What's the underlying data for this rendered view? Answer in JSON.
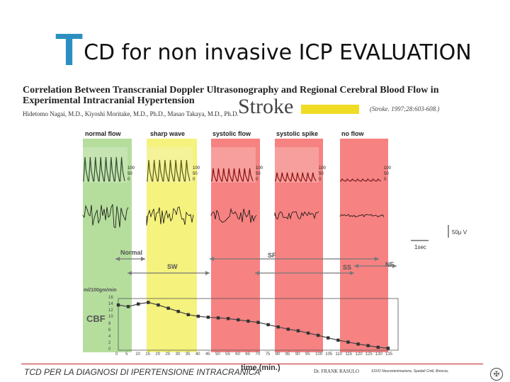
{
  "slide": {
    "title_initial": "T",
    "title_rest": "CD for non invasive ICP EVALUATION"
  },
  "paper": {
    "title": "Correlation Between Transcranial Doppler Ultrasonography and Regional Cerebral Blood Flow in Experimental Intracranial Hypertension",
    "authors": "Hidetomo Nagai, M.D., Kiyoshi Moritake, M.D., Ph.D., Masao Takaya, M.D., Ph.D.",
    "journal": "Stroke",
    "citation": "(Stroke. 1997;28:603-608.)"
  },
  "figure": {
    "panels": [
      "normal flow",
      "sharp wave",
      "systolic flow",
      "systolic spike",
      "no flow"
    ],
    "panel_colors": [
      "#a8d88c",
      "#f3f066",
      "#f56c6c",
      "#f56c6c",
      "#f56c6c"
    ],
    "velocity_ticks": [
      "100",
      "50",
      "0"
    ],
    "eeg_scale": "50μ V",
    "time_scale": "1sec",
    "sections": {
      "normal": "Normal",
      "sw": "SW",
      "sf": "SF",
      "ss": "SS",
      "nf": "NF"
    },
    "cbf_unit": "ml/100gm/min",
    "cbf_label": "CBF",
    "time_axis_label": "time (min.)"
  },
  "chart_data": {
    "type": "line",
    "ylabel": "ml/100gm/min",
    "xlabel": "time (min.)",
    "series": [
      {
        "name": "CBF",
        "x": [
          0,
          5,
          10,
          15,
          20,
          25,
          30,
          35,
          40,
          45,
          50,
          55,
          60,
          65,
          70,
          75,
          80,
          85,
          90,
          95,
          100,
          105,
          110,
          115,
          120,
          125,
          130,
          135
        ],
        "values": [
          14,
          13.5,
          14.3,
          14.8,
          14,
          13,
          12,
          11,
          10.5,
          10.2,
          10,
          9.8,
          9.4,
          9,
          8.6,
          7.9,
          7.2,
          6.5,
          6,
          5.3,
          4.6,
          3.8,
          3.1,
          2.5,
          1.9,
          1.4,
          0.9,
          0.6
        ]
      }
    ],
    "x_ticks": [
      0,
      5,
      10,
      15,
      20,
      25,
      30,
      35,
      40,
      45,
      50,
      55,
      60,
      65,
      70,
      75,
      80,
      85,
      90,
      95,
      100,
      105,
      110,
      115,
      120,
      125,
      130,
      135
    ],
    "y_ticks": [
      0,
      2,
      4,
      6,
      8,
      10,
      12,
      14,
      16
    ],
    "xlim": [
      0,
      140
    ],
    "ylim": [
      0,
      16
    ],
    "bands": [
      {
        "label": "normal",
        "from": -3,
        "to": 8,
        "color": "#a8d88c"
      },
      {
        "label": "sharp wave",
        "from": 12,
        "to": 36,
        "color": "#f3f066"
      },
      {
        "label": "systolic flow",
        "from": 40,
        "to": 95,
        "color": "#f56c6c"
      },
      {
        "label": "no flow",
        "from": 108,
        "to": 125,
        "color": "#f56c6c"
      }
    ]
  },
  "footer": {
    "left": "TCD PER LA DIAGNOSI DI IPERTENSIONE INTRACRANICA",
    "author": "Dr. FRANK RASULO",
    "unit": "SSVD Neurorianimazione, Spedali Civili, Brescia,",
    "logo_icon": "seal-icon"
  }
}
